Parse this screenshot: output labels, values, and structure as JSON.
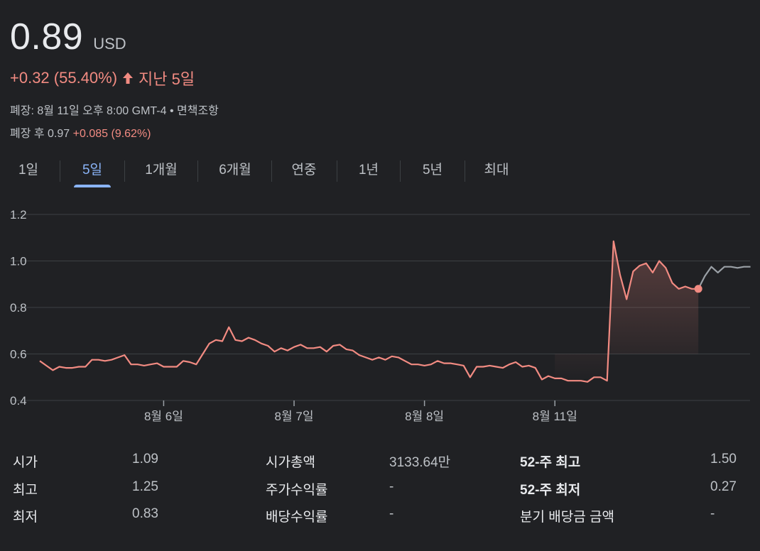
{
  "quote": {
    "price": "0.89",
    "currency": "USD",
    "change": "+0.32 (55.40%)",
    "period": "지난 5일",
    "closed_info": "폐장: 8월 11일 오후 8:00 GMT-4 • 면책조항",
    "after_hours_label": "폐장 후 0.97",
    "after_hours_change": "+0.085 (9.62%)"
  },
  "tabs": [
    {
      "label": "1일"
    },
    {
      "label": "5일"
    },
    {
      "label": "1개월"
    },
    {
      "label": "6개월"
    },
    {
      "label": "연중"
    },
    {
      "label": "1년"
    },
    {
      "label": "5년"
    },
    {
      "label": "최대"
    }
  ],
  "colors": {
    "line": "#f28b82",
    "after_hours": "#9aa0a6",
    "accent": "#8ab4f8"
  },
  "chart_data": {
    "type": "line",
    "y_ticks": [
      "1.2",
      "1.0",
      "0.8",
      "0.6",
      "0.4"
    ],
    "ylim": [
      0.4,
      1.2
    ],
    "x_labels": [
      "8월 6일",
      "8월 7일",
      "8월 8일",
      "8월 11일"
    ],
    "day_boundaries": [
      19,
      39,
      59,
      79
    ],
    "series": [
      {
        "values": [
          0.57,
          0.55,
          0.53,
          0.545,
          0.54,
          0.54,
          0.545,
          0.545,
          0.575,
          0.575,
          0.57,
          0.575,
          0.585,
          0.595,
          0.555,
          0.555,
          0.55,
          0.555,
          0.56,
          0.545,
          0.545,
          0.545,
          0.57,
          0.565,
          0.555,
          0.6,
          0.645,
          0.66,
          0.655,
          0.715,
          0.66,
          0.655,
          0.67,
          0.66,
          0.645,
          0.635,
          0.61,
          0.625,
          0.615,
          0.63,
          0.64,
          0.625,
          0.625,
          0.63,
          0.61,
          0.635,
          0.64,
          0.62,
          0.615,
          0.595,
          0.585,
          0.575,
          0.585,
          0.575,
          0.59,
          0.585,
          0.57,
          0.555,
          0.555,
          0.55,
          0.555,
          0.57,
          0.56,
          0.56,
          0.555,
          0.55,
          0.5,
          0.545,
          0.545,
          0.55,
          0.545,
          0.54,
          0.555,
          0.565,
          0.545,
          0.55,
          0.54,
          0.49,
          0.505,
          0.495,
          0.495,
          0.485,
          0.485,
          0.485,
          0.48,
          0.5,
          0.5,
          0.485,
          1.085,
          0.94,
          0.835,
          0.955,
          0.98,
          0.99,
          0.95,
          1.0,
          0.97,
          0.905,
          0.88,
          0.89,
          0.88,
          0.88
        ]
      },
      {
        "values": [
          0.88,
          0.935,
          0.975,
          0.95,
          0.975,
          0.975,
          0.97,
          0.975,
          0.975
        ]
      }
    ]
  },
  "stats": [
    {
      "label": "시가",
      "value": "1.09"
    },
    {
      "label": "최고",
      "value": "1.25"
    },
    {
      "label": "최저",
      "value": "0.83"
    },
    {
      "label": "시가총액",
      "value": "3133.64만"
    },
    {
      "label": "주가수익률",
      "value": "-"
    },
    {
      "label": "배당수익률",
      "value": "-"
    },
    {
      "label": "52-주 최고",
      "value": "1.50"
    },
    {
      "label": "52-주 최저",
      "value": "0.27"
    },
    {
      "label": "분기 배당금 금액",
      "value": "-"
    }
  ]
}
